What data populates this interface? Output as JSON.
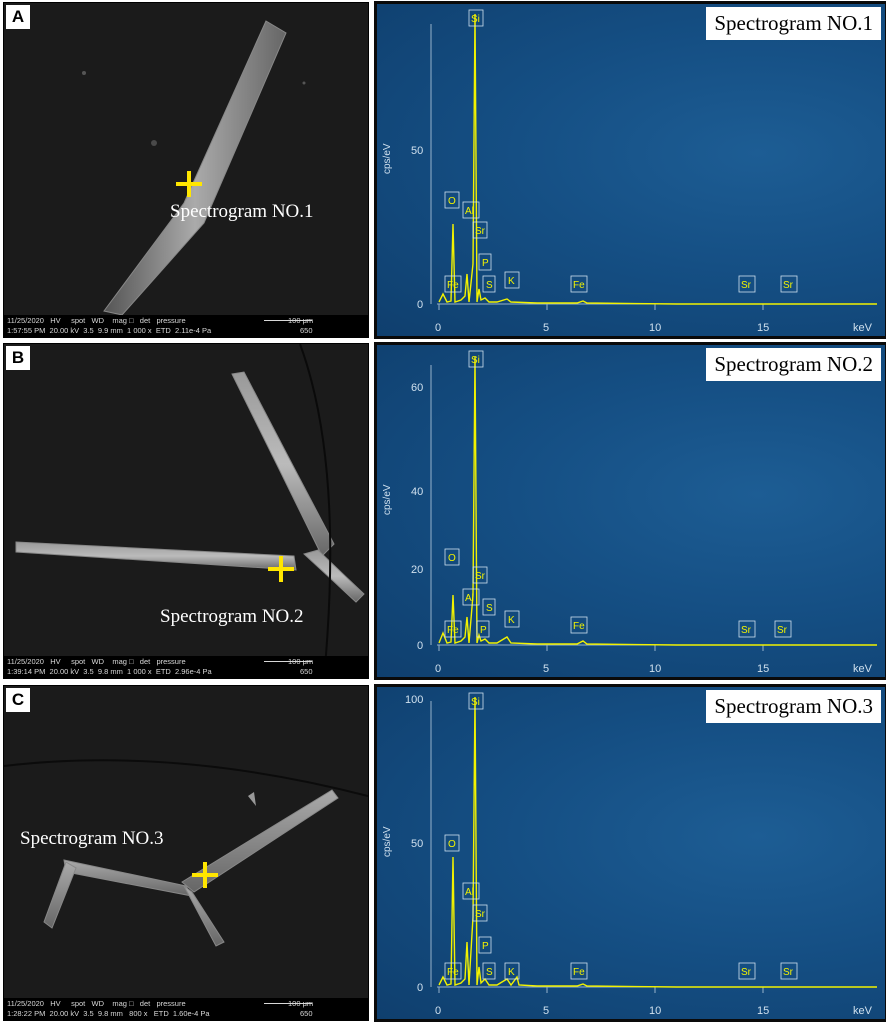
{
  "panels": [
    {
      "label": "A",
      "spot_label": "Spectrogram NO.1",
      "info": {
        "line1": "11/25/2020   HV     spot   WD    mag □   det   pressure",
        "line2": "1:57:55 PM  20.00 kV  3.5  9.9 mm  1 000 x  ETD  2.11e-4 Pa",
        "scale": "100 μm",
        "hfw": "650"
      },
      "spectrum_title": "Spectrogram NO.1",
      "y_ticks": [
        "0",
        "50"
      ],
      "elements": [
        "Si",
        "O",
        "Al",
        "Sr",
        "P",
        "Fe",
        "S",
        "K",
        "Fe",
        "Sr",
        "Sr"
      ]
    },
    {
      "label": "B",
      "spot_label": "Spectrogram NO.2",
      "info": {
        "line1": "11/25/2020   HV     spot   WD    mag □   det   pressure",
        "line2": "1:39:14 PM  20.00 kV  3.5  9.8 mm  1 000 x  ETD  2.96e-4 Pa",
        "scale": "100 μm",
        "hfw": "650"
      },
      "spectrum_title": "Spectrogram NO.2",
      "y_ticks": [
        "0",
        "20",
        "40",
        "60"
      ],
      "elements": [
        "Si",
        "O",
        "Sr",
        "Al",
        "S",
        "Fe",
        "P",
        "K",
        "Fe",
        "Sr",
        "Sr"
      ]
    },
    {
      "label": "C",
      "spot_label": "Spectrogram NO.3",
      "info": {
        "line1": "11/25/2020   HV     spot   WD    mag □   det   pressure",
        "line2": "1:28:22 PM  20.00 kV  3.5  9.8 mm   800 x   ETD  1.60e-4 Pa",
        "scale": "100 μm",
        "hfw": "650"
      },
      "spectrum_title": "Spectrogram NO.3",
      "y_ticks": [
        "0",
        "50",
        "100"
      ],
      "elements": [
        "Si",
        "O",
        "Al",
        "Sr",
        "P",
        "Fe",
        "S",
        "K",
        "Fe",
        "Sr",
        "Sr"
      ]
    }
  ],
  "x_ticks": [
    "0",
    "5",
    "10",
    "15"
  ],
  "x_unit": "keV",
  "y_unit": "cps/eV",
  "colors": {
    "spectrum_line": "#f2f200",
    "axis_text": "#cfe0ee",
    "marker": "#ffe600"
  }
}
